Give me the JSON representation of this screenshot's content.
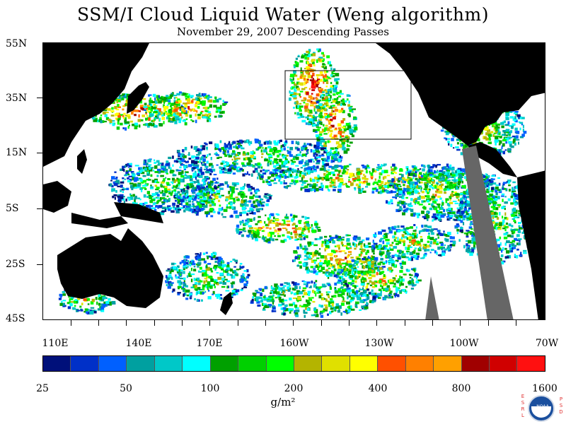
{
  "title": "SSM/I Cloud Liquid Water (Weng algorithm)",
  "subtitle": "November 29, 2007  Descending Passes",
  "map": {
    "latitude_labels": [
      "55N",
      "35N",
      "15N",
      "5S",
      "25S",
      "45S"
    ],
    "longitude_labels": [
      "110E",
      "140E",
      "170E",
      "160W",
      "130W",
      "100W",
      "70W"
    ],
    "land_color": "#000000",
    "no_data_color": "#666666",
    "region_box": {
      "lon": [
        "160W",
        "115W"
      ],
      "lat": [
        "20N",
        "45N"
      ]
    }
  },
  "colorbar": {
    "colors": [
      "#00107a",
      "#0030c8",
      "#0060ff",
      "#00a0a0",
      "#00c8c8",
      "#00ffff",
      "#00a000",
      "#00d000",
      "#00ff00",
      "#b4b400",
      "#e0e000",
      "#ffff00",
      "#ff5000",
      "#ff8000",
      "#ffa000",
      "#a00000",
      "#d00000",
      "#ff1010"
    ],
    "tick_labels": [
      "25",
      "50",
      "100",
      "200",
      "400",
      "800",
      "1600"
    ],
    "units": "g/m²"
  },
  "logo": {
    "left_text": "ESRL",
    "right_text": "PSD",
    "emblem_text": "NOAA"
  }
}
